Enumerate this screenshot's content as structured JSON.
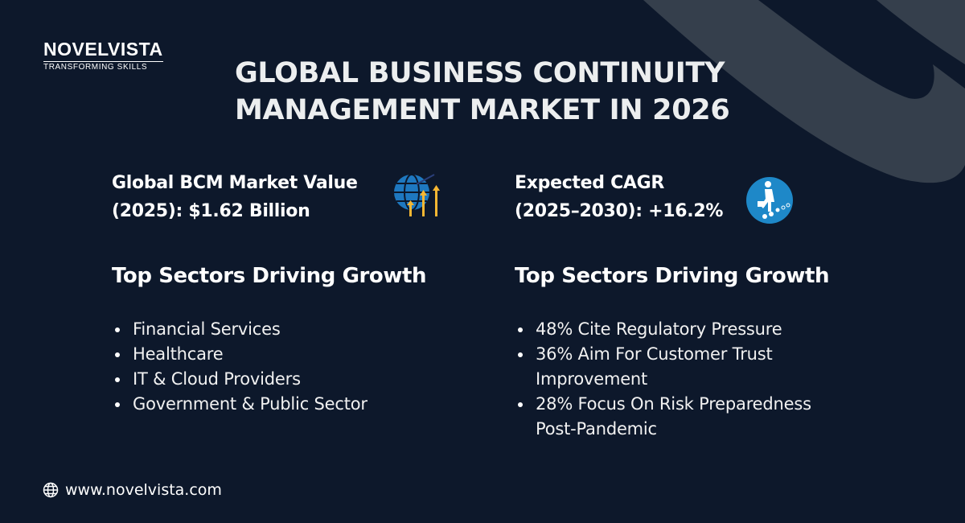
{
  "brand": {
    "name": "NOVELVISTA",
    "tagline": "TRANSFORMING SKILLS"
  },
  "title": {
    "line1": "GLOBAL BUSINESS CONTINUITY",
    "line2": "MANAGEMENT MARKET IN 2026"
  },
  "left": {
    "stat_line1": "Global BCM Market Value",
    "stat_line2": "(2025): $1.62 Billion",
    "stat_icon": "globe-growth-arrows-icon",
    "heading": "Top Sectors Driving Growth",
    "items": [
      "Financial Services",
      "Healthcare",
      "IT & Cloud Providers",
      "Government & Public Sector"
    ]
  },
  "right": {
    "stat_line1": "Expected CAGR",
    "stat_line2": "(2025–2030): +16.2%",
    "stat_icon": "businessman-climbing-icon",
    "heading": "Top Sectors Driving Growth",
    "items": [
      "48% Cite Regulatory Pressure",
      "36% Aim For Customer Trust Improvement",
      "28% Focus On Risk Preparedness Post-Pandemic"
    ]
  },
  "footer": {
    "url": "www.novelvista.com",
    "icon": "globe-icon"
  },
  "colors": {
    "background": "#0d182b",
    "swoosh": "#353f4c",
    "accent_blue": "#1e88c8",
    "accent_yellow": "#f7b733"
  }
}
